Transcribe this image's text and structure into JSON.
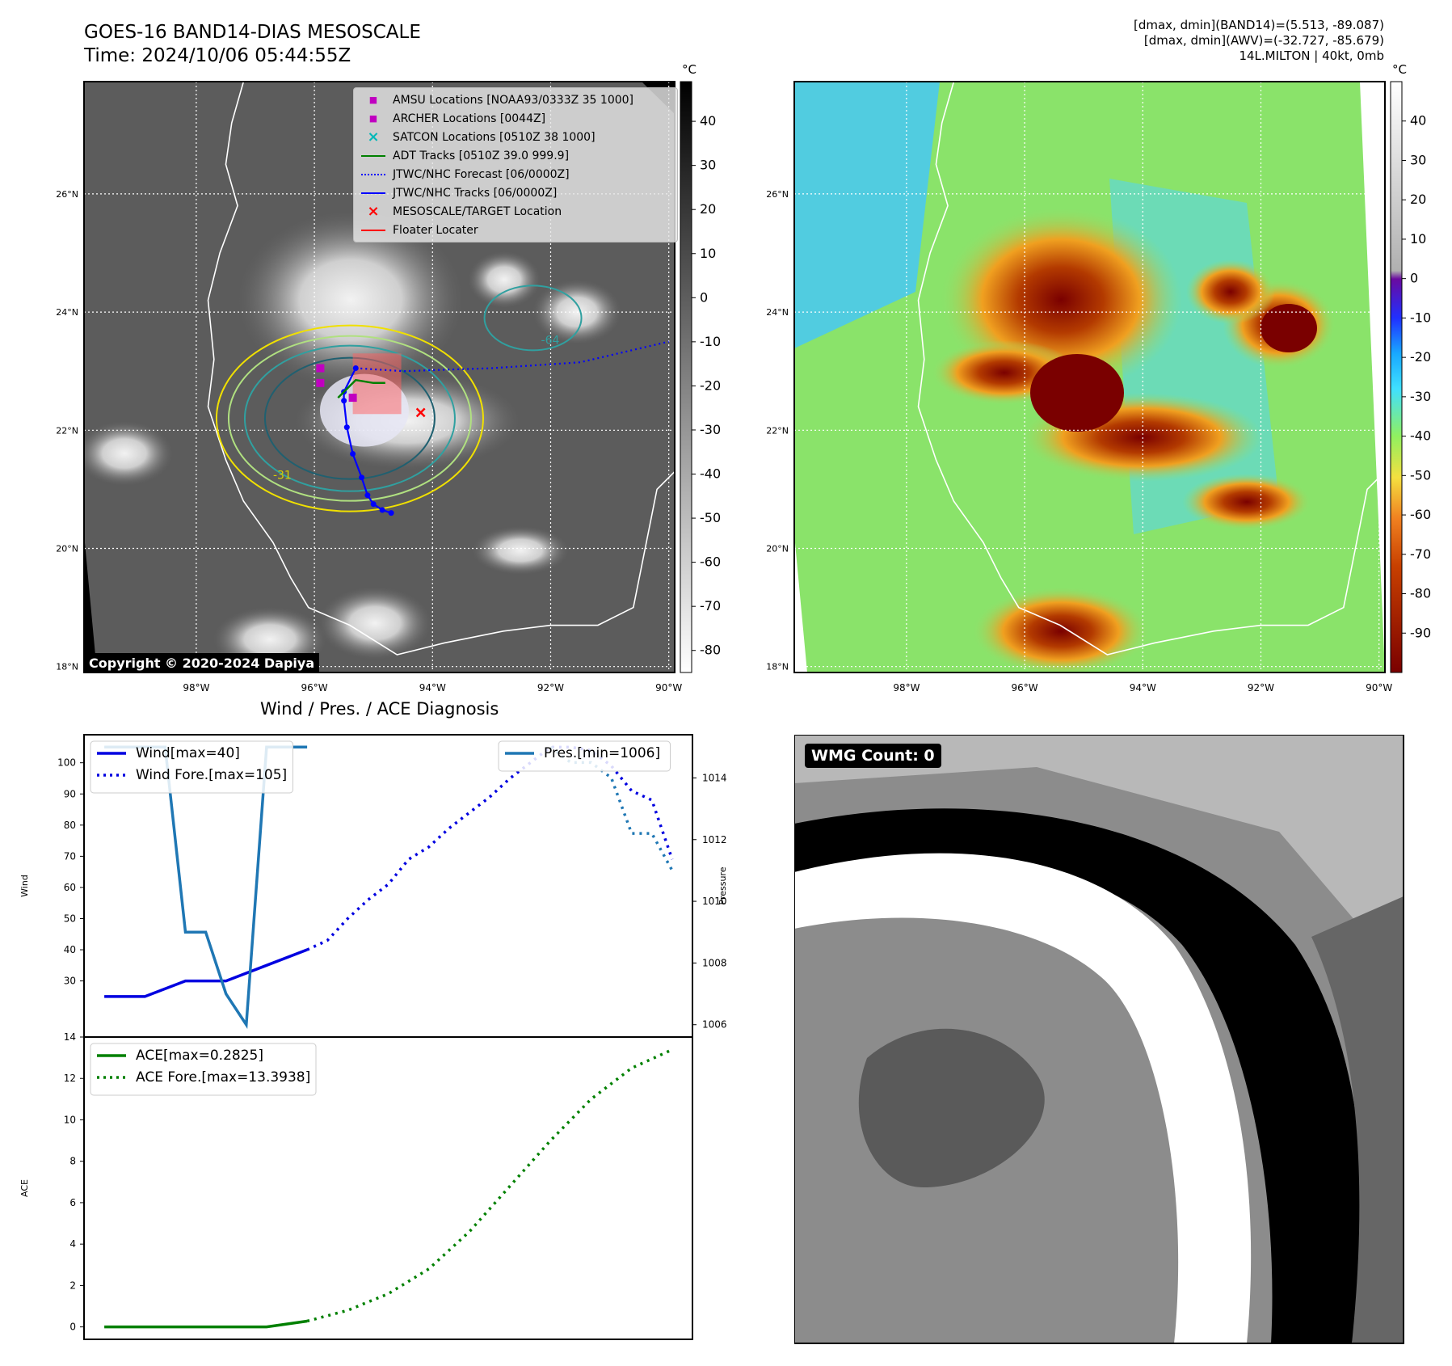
{
  "header": {
    "title_line1": "GOES-16 BAND14-DIAS MESOSCALE",
    "title_line2": "Time: 2024/10/06 05:44:55Z",
    "info_line1": "[dmax, dmin](BAND14)=(5.513, -89.087)",
    "info_line2": "[dmax, dmin](AWV)=(-32.727, -85.679)",
    "info_line3": "14L.MILTON | 40kt, 0mb"
  },
  "maps": {
    "lat_labels": [
      "26°N",
      "24°N",
      "22°N",
      "20°N",
      "18°N"
    ],
    "lat_values": [
      26,
      24,
      22,
      20,
      18
    ],
    "lon_labels": [
      "98°W",
      "96°W",
      "94°W",
      "92°W",
      "90°W"
    ],
    "lon_values": [
      -98,
      -96,
      -94,
      -92,
      -90
    ],
    "extent": {
      "lon_min": -99.9,
      "lon_max": -89.9,
      "lat_min": 17.9,
      "lat_max": 27.9
    },
    "colorbar_unit": "°C",
    "left_colorbar_ticks": [
      40,
      30,
      20,
      10,
      0,
      -10,
      -20,
      -30,
      -40,
      -50,
      -60,
      -70,
      -80
    ],
    "left_colorbar_range": [
      -85,
      49
    ],
    "right_colorbar_ticks": [
      40,
      30,
      20,
      10,
      0,
      -10,
      -20,
      -30,
      -40,
      -50,
      -60,
      -70,
      -80,
      -90
    ],
    "right_colorbar_range": [
      -100,
      50
    ],
    "contour_labels": [
      "-31",
      "-64"
    ],
    "copyright": "Copyright © 2020-2024 Dapiya",
    "legend": [
      {
        "label": "AMSU Locations [NOAA93/0333Z 35 1000]",
        "symbol": "square",
        "color": "#c000c0"
      },
      {
        "label": "ARCHER Locations [0044Z]",
        "symbol": "square",
        "color": "#c000c0"
      },
      {
        "label": "SATCON Locations [0510Z 38 1000]",
        "symbol": "x",
        "color": "#00b8b8"
      },
      {
        "label": "ADT Tracks [0510Z 39.0 999.9]",
        "symbol": "line",
        "color": "#008000"
      },
      {
        "label": "JTWC/NHC Forecast [06/0000Z]",
        "symbol": "dotted",
        "color": "#0000ff"
      },
      {
        "label": "JTWC/NHC Tracks [06/0000Z]",
        "symbol": "line-dot",
        "color": "#0000ff"
      },
      {
        "label": "MESOSCALE/TARGET Location",
        "symbol": "x",
        "color": "#ff0000"
      },
      {
        "label": "Floater Locater",
        "symbol": "line",
        "color": "#ff0000"
      }
    ],
    "track_points": [
      [
        -94.7,
        20.6
      ],
      [
        -94.85,
        20.65
      ],
      [
        -95.0,
        20.75
      ],
      [
        -95.1,
        20.9
      ],
      [
        -95.2,
        21.2
      ],
      [
        -95.35,
        21.6
      ],
      [
        -95.45,
        22.05
      ],
      [
        -95.5,
        22.5
      ],
      [
        -95.5,
        22.65
      ],
      [
        -95.3,
        23.05
      ]
    ],
    "forecast_points": [
      [
        -95.3,
        23.05
      ],
      [
        -94.5,
        23.0
      ],
      [
        -93.0,
        23.05
      ],
      [
        -91.5,
        23.15
      ],
      [
        -90.0,
        23.5
      ]
    ],
    "adt_points": [
      [
        -95.6,
        22.55
      ],
      [
        -95.3,
        22.85
      ],
      [
        -95.0,
        22.8
      ],
      [
        -94.8,
        22.8
      ]
    ],
    "target": [
      -94.2,
      22.3
    ]
  },
  "wmg": {
    "label": "WMG Count: 0"
  },
  "chart_data": [
    {
      "type": "line",
      "title": "Wind / Pres. / ACE Diagnosis",
      "ylabel": "Wind",
      "ylim": [
        12,
        109
      ],
      "ylabel_right": "Pressure",
      "ylim_right": [
        1005.6,
        1015.4
      ],
      "x_range": [
        0,
        30
      ],
      "series": [
        {
          "name": "Wind[max=40]",
          "axis": "left",
          "style": "solid",
          "color": "#0000e0",
          "x": [
            1,
            3,
            5,
            7,
            9,
            11
          ],
          "values": [
            25,
            25,
            30,
            30,
            35,
            40
          ]
        },
        {
          "name": "Wind Fore.[max=105]",
          "axis": "left",
          "style": "dotted",
          "color": "#0000e0",
          "x": [
            11,
            12,
            13,
            14,
            15,
            16,
            17,
            18,
            19,
            20,
            21,
            22,
            23,
            24,
            25,
            26,
            27,
            28,
            29
          ],
          "values": [
            40,
            43,
            50,
            56,
            61,
            69,
            73,
            79,
            84,
            89,
            95,
            100,
            105,
            105,
            104,
            99,
            91,
            88,
            69
          ]
        },
        {
          "name": "Pres.[min=1006]",
          "axis": "right",
          "style": "solid",
          "color": "#1f77b4",
          "x": [
            1,
            2,
            3,
            4,
            5,
            6,
            7,
            8,
            9,
            10,
            11
          ],
          "values": [
            1015,
            1015,
            1015,
            1015,
            1009,
            1009,
            1007,
            1006,
            1015,
            1015,
            1015
          ]
        },
        {
          "name": "",
          "axis": "right",
          "style": "dotted",
          "color": "#1f77b4",
          "x": [
            23,
            24,
            25,
            26,
            27,
            28,
            29
          ],
          "values": [
            1015,
            1014.5,
            1014.5,
            1014,
            1012.2,
            1012.2,
            1011
          ]
        }
      ],
      "yticks": [
        30,
        40,
        50,
        60,
        70,
        80,
        90,
        100
      ],
      "yticks_right": [
        1006,
        1008,
        1010,
        1012,
        1014
      ]
    },
    {
      "type": "line",
      "ylabel": "ACE",
      "ylim": [
        -0.6,
        14
      ],
      "x_range": [
        0,
        30
      ],
      "series": [
        {
          "name": "ACE[max=0.2825]",
          "style": "solid",
          "color": "#008000",
          "x": [
            1,
            3,
            5,
            7,
            9,
            11
          ],
          "values": [
            0,
            0,
            0,
            0,
            0,
            0.28
          ]
        },
        {
          "name": "ACE Fore.[max=13.3938]",
          "style": "dotted",
          "color": "#008000",
          "x": [
            11,
            13,
            15,
            17,
            19,
            21,
            23,
            25,
            27,
            29
          ],
          "values": [
            0.28,
            0.8,
            1.6,
            2.8,
            4.6,
            6.8,
            9.0,
            11.0,
            12.5,
            13.39
          ]
        }
      ],
      "yticks": [
        0,
        2,
        4,
        6,
        8,
        10,
        12,
        14
      ]
    }
  ]
}
